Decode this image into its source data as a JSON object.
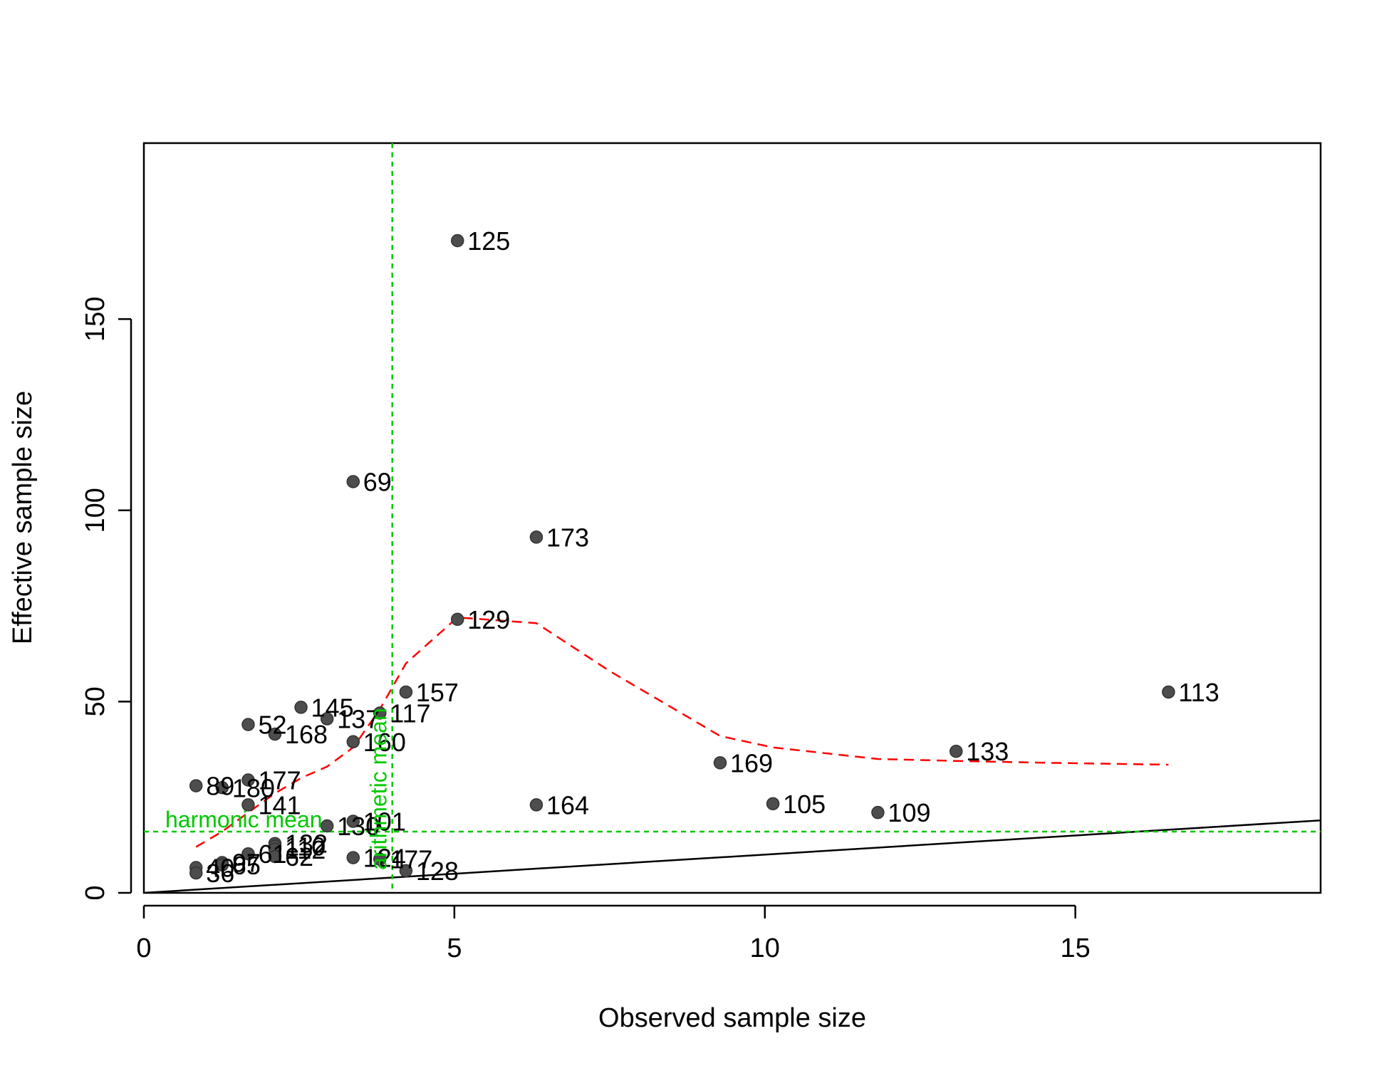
{
  "chart_data": {
    "type": "scatter",
    "title": "",
    "xlabel": "Observed sample size",
    "ylabel": "Effective sample size",
    "xlim": [
      0,
      18.95
    ],
    "ylim": [
      0,
      196
    ],
    "x_ticks": [
      0,
      5,
      10,
      15
    ],
    "y_ticks": [
      0,
      50,
      100,
      150
    ],
    "grid": false,
    "points": [
      {
        "label": "125",
        "x": 5.05,
        "y": 170.5
      },
      {
        "label": "69",
        "x": 3.37,
        "y": 107.5
      },
      {
        "label": "173",
        "x": 6.32,
        "y": 93.0
      },
      {
        "label": "129",
        "x": 5.05,
        "y": 71.5
      },
      {
        "label": "157",
        "x": 4.22,
        "y": 52.5
      },
      {
        "label": "113",
        "x": 16.5,
        "y": 52.5
      },
      {
        "label": "145",
        "x": 2.53,
        "y": 48.5
      },
      {
        "label": "117",
        "x": 3.8,
        "y": 47.0
      },
      {
        "label": "137",
        "x": 2.95,
        "y": 45.5
      },
      {
        "label": "52",
        "x": 1.68,
        "y": 44.0
      },
      {
        "label": "168",
        "x": 2.11,
        "y": 41.5
      },
      {
        "label": "160",
        "x": 3.37,
        "y": 39.5
      },
      {
        "label": "133",
        "x": 13.08,
        "y": 37.0
      },
      {
        "label": "169",
        "x": 9.28,
        "y": 34.0
      },
      {
        "label": "177",
        "x": 1.68,
        "y": 29.5
      },
      {
        "label": "89",
        "x": 0.84,
        "y": 28.0
      },
      {
        "label": "180",
        "x": 1.26,
        "y": 27.5
      },
      {
        "label": "164",
        "x": 6.32,
        "y": 23.0
      },
      {
        "label": "105",
        "x": 10.13,
        "y": 23.3
      },
      {
        "label": "141",
        "x": 1.68,
        "y": 23.0
      },
      {
        "label": "109",
        "x": 11.82,
        "y": 21.0
      },
      {
        "label": "101",
        "x": 3.37,
        "y": 18.7
      },
      {
        "label": "130",
        "x": 2.95,
        "y": 17.5
      },
      {
        "label": "132",
        "x": 2.11,
        "y": 12.9
      },
      {
        "label": "110",
        "x": 2.11,
        "y": 12.2
      },
      {
        "label": "112",
        "x": 2.11,
        "y": 11.4
      },
      {
        "label": "61",
        "x": 1.68,
        "y": 10.2
      },
      {
        "label": "124",
        "x": 3.37,
        "y": 9.2
      },
      {
        "label": "62",
        "x": 2.11,
        "y": 9.5
      },
      {
        "label": "177",
        "x": 3.8,
        "y": 8.8
      },
      {
        "label": "97",
        "x": 1.26,
        "y": 7.9
      },
      {
        "label": "65",
        "x": 1.26,
        "y": 7.3
      },
      {
        "label": "40",
        "x": 0.84,
        "y": 6.6
      },
      {
        "label": "36",
        "x": 0.84,
        "y": 5.2
      },
      {
        "label": "128",
        "x": 4.22,
        "y": 5.8
      }
    ],
    "reference_lines": {
      "identity": {
        "slope": 1,
        "intercept": 0,
        "color": "#000000"
      },
      "harmonic_mean": {
        "label": "harmonic mean",
        "y": 16.0,
        "color": "#00c800"
      },
      "arithmetic_mean": {
        "label": "arithmetic mean",
        "x": 4.0,
        "color": "#00c800"
      }
    },
    "smooth_curve": {
      "color": "#ff0000",
      "x": [
        0.84,
        1.26,
        1.68,
        2.11,
        2.53,
        2.95,
        3.37,
        3.8,
        4.22,
        5.05,
        6.32,
        7.5,
        9.28,
        10.13,
        11.82,
        13.08,
        14.5,
        16.5
      ],
      "y": [
        12.0,
        16.0,
        21.0,
        26.0,
        30.0,
        33.0,
        38.0,
        48.0,
        60.0,
        72.0,
        70.5,
        58.0,
        41.0,
        38.0,
        35.0,
        34.5,
        34.0,
        33.5
      ]
    },
    "colors": {
      "point": "#4d4d4d",
      "axis": "#000000"
    }
  }
}
